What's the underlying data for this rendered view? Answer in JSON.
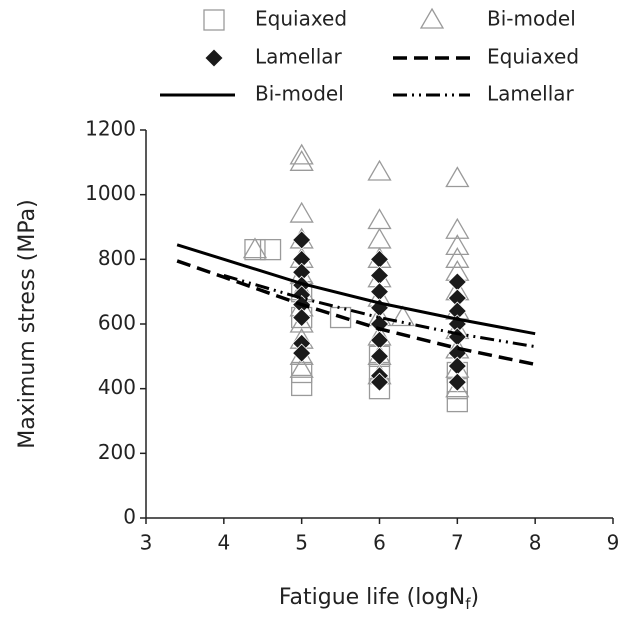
{
  "chart_data": {
    "type": "scatter",
    "x_label_parts": [
      "Fatigue life (logN",
      "f",
      ")"
    ],
    "y_label": "Maximum stress (MPa)",
    "xlim": [
      3,
      9
    ],
    "xticks": [
      3,
      4,
      5,
      6,
      7,
      8,
      9
    ],
    "ylim": [
      0,
      1200
    ],
    "yticks": [
      0,
      200,
      400,
      600,
      800,
      1000,
      1200
    ],
    "grid": false,
    "legend": "top",
    "series": [
      {
        "name": "Equiaxed",
        "kind": "scatter",
        "marker": "square",
        "color": "#9a9a9a",
        "x": [
          4.4,
          4.6,
          5,
          5,
          5,
          5,
          5.5,
          6,
          6,
          6,
          7,
          7,
          7
        ],
        "values": [
          830,
          830,
          410,
          450,
          620,
          700,
          620,
          400,
          450,
          500,
          360,
          400,
          450
        ]
      },
      {
        "name": "Bi-model",
        "kind": "scatter",
        "marker": "triangle",
        "color": "#9a9a9a",
        "x": [
          4.4,
          5,
          5,
          5,
          5,
          5,
          5,
          5,
          5,
          5,
          5,
          5,
          5,
          6,
          6,
          6,
          6,
          6,
          6,
          6,
          6,
          6,
          6,
          6.3,
          7,
          7,
          7,
          7,
          7,
          7,
          7,
          7,
          7,
          7,
          7
        ],
        "values": [
          830,
          1120,
          1100,
          940,
          860,
          800,
          750,
          700,
          650,
          600,
          550,
          500,
          460,
          1070,
          920,
          860,
          800,
          740,
          680,
          620,
          560,
          500,
          440,
          620,
          1050,
          890,
          840,
          800,
          760,
          700,
          640,
          580,
          520,
          460,
          400
        ]
      },
      {
        "name": "Lamellar",
        "kind": "scatter",
        "marker": "diamond",
        "color": "#1a1a1a",
        "x": [
          5,
          5,
          5,
          5,
          5,
          5,
          5,
          5,
          5,
          6,
          6,
          6,
          6,
          6,
          6,
          6,
          6,
          6,
          7,
          7,
          7,
          7,
          7,
          7,
          7,
          7
        ],
        "values": [
          860,
          800,
          760,
          720,
          690,
          660,
          620,
          540,
          510,
          800,
          750,
          700,
          650,
          600,
          550,
          500,
          440,
          420,
          730,
          680,
          640,
          600,
          560,
          510,
          470,
          420
        ]
      },
      {
        "name": "Equiaxed",
        "kind": "line",
        "dash": "dashed",
        "color": "#000000",
        "x": [
          3.4,
          4,
          5,
          6,
          7,
          8
        ],
        "values": [
          795,
          745,
          660,
          585,
          525,
          475
        ]
      },
      {
        "name": "Bi-model",
        "kind": "line",
        "dash": "solid",
        "color": "#000000",
        "x": [
          3.4,
          4,
          5,
          6,
          7,
          8
        ],
        "values": [
          845,
          800,
          725,
          665,
          615,
          570
        ]
      },
      {
        "name": "Lamellar",
        "kind": "line",
        "dash": "dashdotdot",
        "color": "#000000",
        "x": [
          4,
          5,
          6,
          7,
          8
        ],
        "values": [
          750,
          680,
          620,
          570,
          530
        ]
      }
    ]
  }
}
